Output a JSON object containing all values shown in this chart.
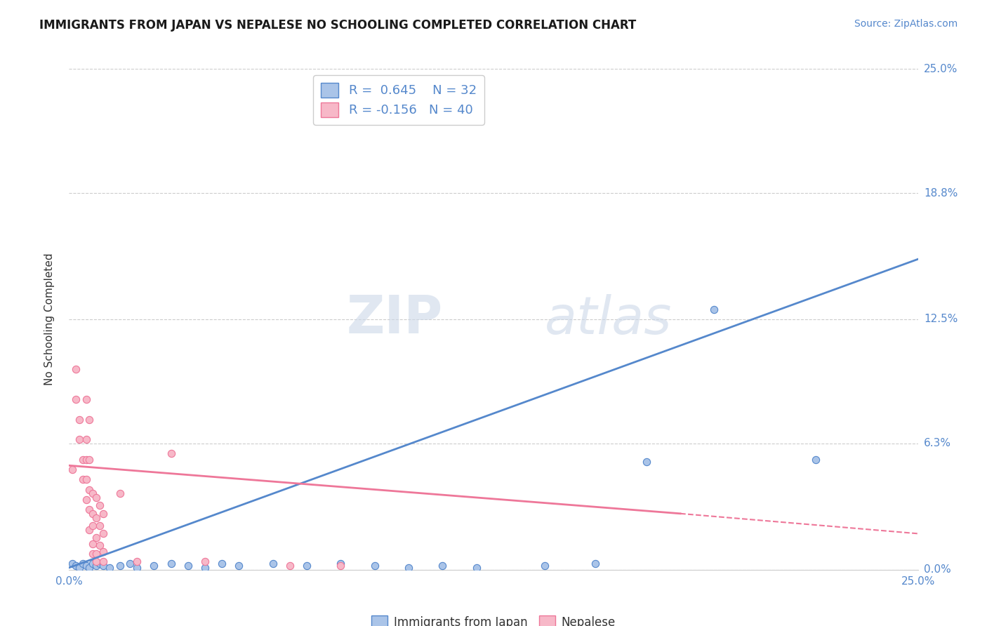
{
  "title": "IMMIGRANTS FROM JAPAN VS NEPALESE NO SCHOOLING COMPLETED CORRELATION CHART",
  "source_text": "Source: ZipAtlas.com",
  "ylabel": "No Schooling Completed",
  "xlim": [
    0.0,
    0.25
  ],
  "ylim": [
    0.0,
    0.25
  ],
  "ytick_labels": [
    "0.0%",
    "6.3%",
    "12.5%",
    "18.8%",
    "25.0%"
  ],
  "ytick_vals": [
    0.0,
    0.063,
    0.125,
    0.188,
    0.25
  ],
  "grid_color": "#cccccc",
  "watermark_zip": "ZIP",
  "watermark_atlas": "atlas",
  "legend_label1": "Immigrants from Japan",
  "legend_label2": "Nepalese",
  "R1": "0.645",
  "N1": "32",
  "R2": "-0.156",
  "N2": "40",
  "blue_color": "#5588cc",
  "pink_color": "#ee7799",
  "blue_light": "#aac4e8",
  "pink_light": "#f7b8c8",
  "blue_scatter": [
    [
      0.001,
      0.003
    ],
    [
      0.002,
      0.002
    ],
    [
      0.003,
      0.001
    ],
    [
      0.004,
      0.003
    ],
    [
      0.005,
      0.002
    ],
    [
      0.006,
      0.001
    ],
    [
      0.007,
      0.003
    ],
    [
      0.008,
      0.002
    ],
    [
      0.009,
      0.003
    ],
    [
      0.01,
      0.002
    ],
    [
      0.012,
      0.001
    ],
    [
      0.015,
      0.002
    ],
    [
      0.018,
      0.003
    ],
    [
      0.02,
      0.001
    ],
    [
      0.025,
      0.002
    ],
    [
      0.03,
      0.003
    ],
    [
      0.035,
      0.002
    ],
    [
      0.04,
      0.001
    ],
    [
      0.045,
      0.003
    ],
    [
      0.05,
      0.002
    ],
    [
      0.06,
      0.003
    ],
    [
      0.07,
      0.002
    ],
    [
      0.08,
      0.003
    ],
    [
      0.09,
      0.002
    ],
    [
      0.1,
      0.001
    ],
    [
      0.11,
      0.002
    ],
    [
      0.12,
      0.001
    ],
    [
      0.14,
      0.002
    ],
    [
      0.155,
      0.003
    ],
    [
      0.17,
      0.054
    ],
    [
      0.19,
      0.13
    ],
    [
      0.22,
      0.055
    ]
  ],
  "pink_scatter": [
    [
      0.001,
      0.05
    ],
    [
      0.002,
      0.1
    ],
    [
      0.002,
      0.085
    ],
    [
      0.003,
      0.075
    ],
    [
      0.003,
      0.065
    ],
    [
      0.004,
      0.055
    ],
    [
      0.004,
      0.045
    ],
    [
      0.005,
      0.085
    ],
    [
      0.005,
      0.065
    ],
    [
      0.005,
      0.055
    ],
    [
      0.005,
      0.045
    ],
    [
      0.005,
      0.035
    ],
    [
      0.006,
      0.075
    ],
    [
      0.006,
      0.055
    ],
    [
      0.006,
      0.04
    ],
    [
      0.006,
      0.03
    ],
    [
      0.006,
      0.02
    ],
    [
      0.007,
      0.038
    ],
    [
      0.007,
      0.028
    ],
    [
      0.007,
      0.022
    ],
    [
      0.007,
      0.013
    ],
    [
      0.007,
      0.008
    ],
    [
      0.008,
      0.036
    ],
    [
      0.008,
      0.026
    ],
    [
      0.008,
      0.016
    ],
    [
      0.008,
      0.008
    ],
    [
      0.008,
      0.004
    ],
    [
      0.009,
      0.032
    ],
    [
      0.009,
      0.022
    ],
    [
      0.009,
      0.012
    ],
    [
      0.01,
      0.028
    ],
    [
      0.01,
      0.018
    ],
    [
      0.01,
      0.009
    ],
    [
      0.01,
      0.004
    ],
    [
      0.015,
      0.038
    ],
    [
      0.02,
      0.004
    ],
    [
      0.03,
      0.058
    ],
    [
      0.04,
      0.004
    ],
    [
      0.065,
      0.002
    ],
    [
      0.08,
      0.002
    ]
  ],
  "blue_line": [
    [
      0.0,
      0.001
    ],
    [
      0.25,
      0.155
    ]
  ],
  "pink_line_solid": [
    [
      0.0,
      0.052
    ],
    [
      0.18,
      0.028
    ]
  ],
  "pink_line_dashed": [
    [
      0.18,
      0.028
    ],
    [
      0.25,
      0.018
    ]
  ],
  "background_color": "#ffffff"
}
